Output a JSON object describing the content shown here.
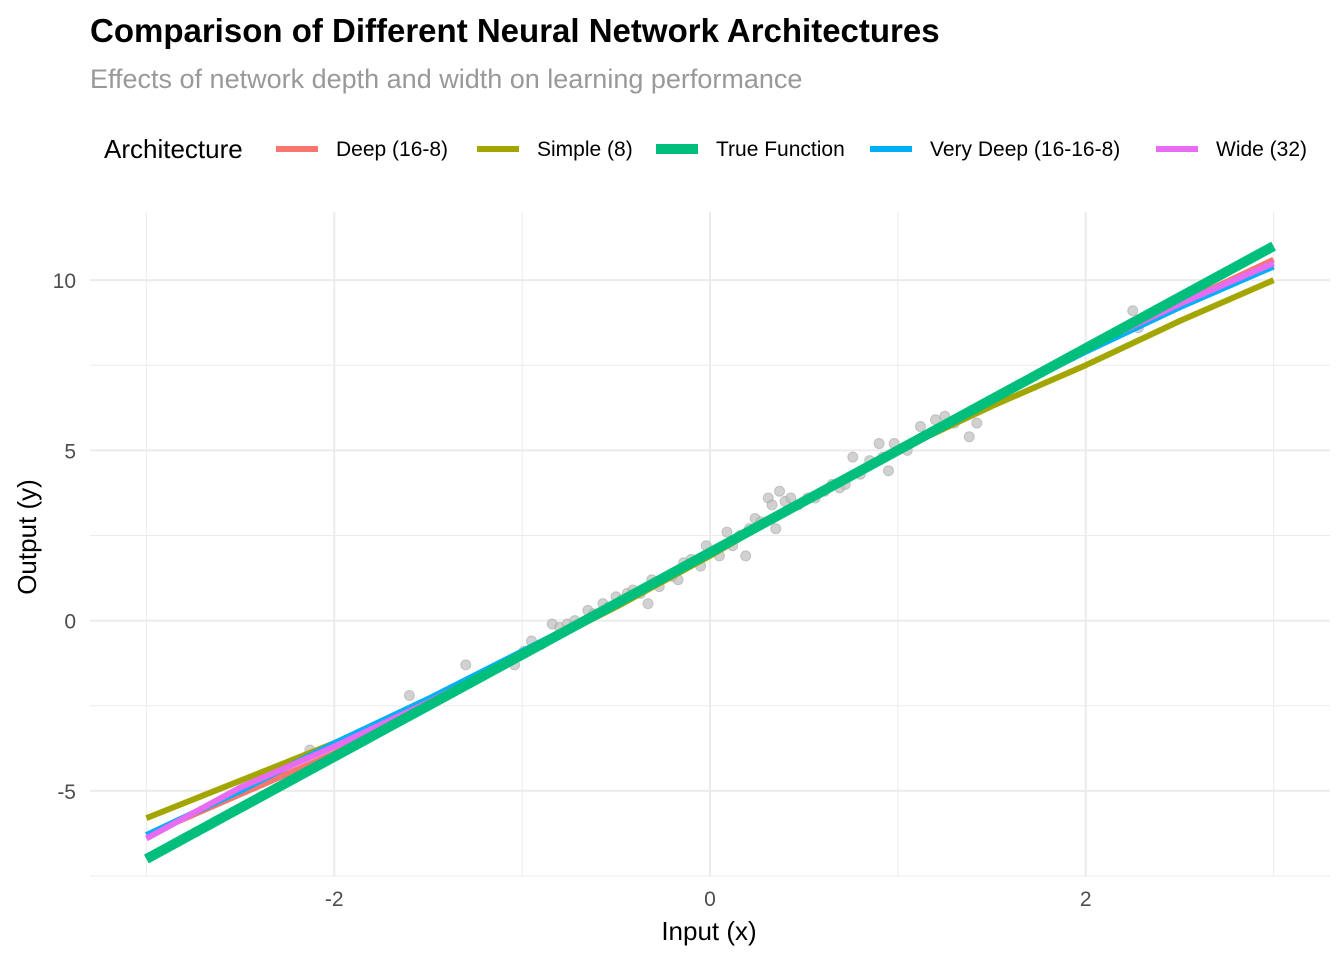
{
  "chart_data": {
    "type": "line",
    "title": "Comparison of Different Neural Network Architectures",
    "subtitle": "Effects of network depth and width on learning performance",
    "xlabel": "Input (x)",
    "ylabel": "Output (y)",
    "xlim": [
      -3.3,
      3.3
    ],
    "ylim": [
      -7.5,
      12.0
    ],
    "x_ticks": [
      -2,
      0,
      2
    ],
    "x_tick_labels": [
      "-2",
      "0",
      "2"
    ],
    "y_ticks": [
      -5,
      0,
      5,
      10
    ],
    "y_tick_labels": [
      "-5",
      "0",
      "5",
      "10"
    ],
    "x_minor_ticks": [
      -3,
      -1,
      1,
      3
    ],
    "y_minor_ticks": [
      -7.5,
      -2.5,
      2.5,
      7.5
    ],
    "grid": true,
    "legend": {
      "title": "Architecture",
      "position": "top",
      "entries": [
        "Deep (16-8)",
        "Simple (8)",
        "True Function",
        "Very Deep (16-16-8)",
        "Wide (32)"
      ]
    },
    "series": [
      {
        "name": "Deep (16-8)",
        "color": "#F8766D",
        "x": [
          -3.0,
          -2.5,
          -2.0,
          -1.5,
          -1.0,
          -0.5,
          0.0,
          0.5,
          1.0,
          1.5,
          2.0,
          2.5,
          3.0
        ],
        "y": [
          -6.3,
          -5.1,
          -3.9,
          -2.5,
          -1.0,
          0.5,
          2.0,
          3.5,
          5.0,
          6.5,
          8.0,
          9.3,
          10.6
        ]
      },
      {
        "name": "Simple (8)",
        "color": "#A3A500",
        "x": [
          -3.0,
          -2.5,
          -2.0,
          -1.5,
          -1.0,
          -0.5,
          0.0,
          0.5,
          1.0,
          1.5,
          2.0,
          2.5,
          3.0
        ],
        "y": [
          -5.8,
          -4.7,
          -3.6,
          -2.4,
          -1.0,
          0.4,
          1.9,
          3.5,
          5.0,
          6.3,
          7.5,
          8.8,
          10.0
        ]
      },
      {
        "name": "True Function",
        "color": "#00BF7D",
        "x": [
          -3.0,
          -2.5,
          -2.0,
          -1.5,
          -1.0,
          -0.5,
          0.0,
          0.5,
          1.0,
          1.5,
          2.0,
          2.5,
          3.0
        ],
        "y": [
          -7.0,
          -5.5,
          -4.0,
          -2.5,
          -1.0,
          0.5,
          2.0,
          3.5,
          5.0,
          6.5,
          8.0,
          9.5,
          11.0
        ]
      },
      {
        "name": "Very Deep (16-16-8)",
        "color": "#00B0F6",
        "x": [
          -3.0,
          -2.5,
          -2.0,
          -1.5,
          -1.0,
          -0.5,
          0.0,
          0.5,
          1.0,
          1.5,
          2.0,
          2.5,
          3.0
        ],
        "y": [
          -6.3,
          -5.0,
          -3.6,
          -2.3,
          -0.9,
          0.5,
          2.0,
          3.5,
          5.0,
          6.5,
          7.9,
          9.2,
          10.4
        ]
      },
      {
        "name": "Wide (32)",
        "color": "#E76BF3",
        "x": [
          -3.0,
          -2.5,
          -2.0,
          -1.5,
          -1.0,
          -0.5,
          0.0,
          0.5,
          1.0,
          1.5,
          2.0,
          2.5,
          3.0
        ],
        "y": [
          -6.4,
          -4.9,
          -3.7,
          -2.4,
          -1.0,
          0.5,
          2.0,
          3.5,
          5.0,
          6.5,
          8.0,
          9.3,
          10.5
        ]
      }
    ],
    "scatter_points": {
      "name": "observations",
      "color": "#BEBEBE",
      "x": [
        -2.22,
        -2.13,
        -1.6,
        -1.3,
        -1.04,
        -0.99,
        -0.95,
        -0.9,
        -0.84,
        -0.8,
        -0.76,
        -0.72,
        -0.65,
        -0.62,
        -0.57,
        -0.54,
        -0.5,
        -0.47,
        -0.44,
        -0.41,
        -0.37,
        -0.33,
        -0.31,
        -0.27,
        -0.2,
        -0.17,
        -0.14,
        -0.1,
        -0.05,
        -0.02,
        0.0,
        0.05,
        0.09,
        0.12,
        0.16,
        0.19,
        0.21,
        0.24,
        0.27,
        0.31,
        0.33,
        0.35,
        0.37,
        0.4,
        0.43,
        0.47,
        0.52,
        0.56,
        0.61,
        0.65,
        0.69,
        0.72,
        0.76,
        0.8,
        0.85,
        0.9,
        0.92,
        0.95,
        0.98,
        1.05,
        1.12,
        1.2,
        1.25,
        1.3,
        1.38,
        1.42,
        2.25,
        2.28
      ],
      "y": [
        -4.5,
        -3.8,
        -2.2,
        -1.3,
        -1.3,
        -0.9,
        -0.6,
        -0.7,
        -0.1,
        -0.2,
        -0.1,
        0.0,
        0.3,
        0.2,
        0.5,
        0.4,
        0.7,
        0.6,
        0.8,
        0.9,
        0.8,
        0.5,
        1.2,
        1.0,
        1.3,
        1.2,
        1.7,
        1.8,
        1.6,
        2.2,
        2.0,
        1.9,
        2.6,
        2.2,
        2.5,
        1.9,
        2.7,
        3.0,
        2.9,
        3.6,
        3.4,
        2.7,
        3.8,
        3.5,
        3.6,
        3.4,
        3.6,
        3.6,
        3.8,
        4.0,
        3.9,
        4.0,
        4.8,
        4.3,
        4.7,
        5.2,
        4.8,
        4.4,
        5.2,
        5.0,
        5.7,
        5.9,
        6.0,
        5.8,
        5.4,
        5.8,
        9.1,
        8.6
      ]
    }
  }
}
